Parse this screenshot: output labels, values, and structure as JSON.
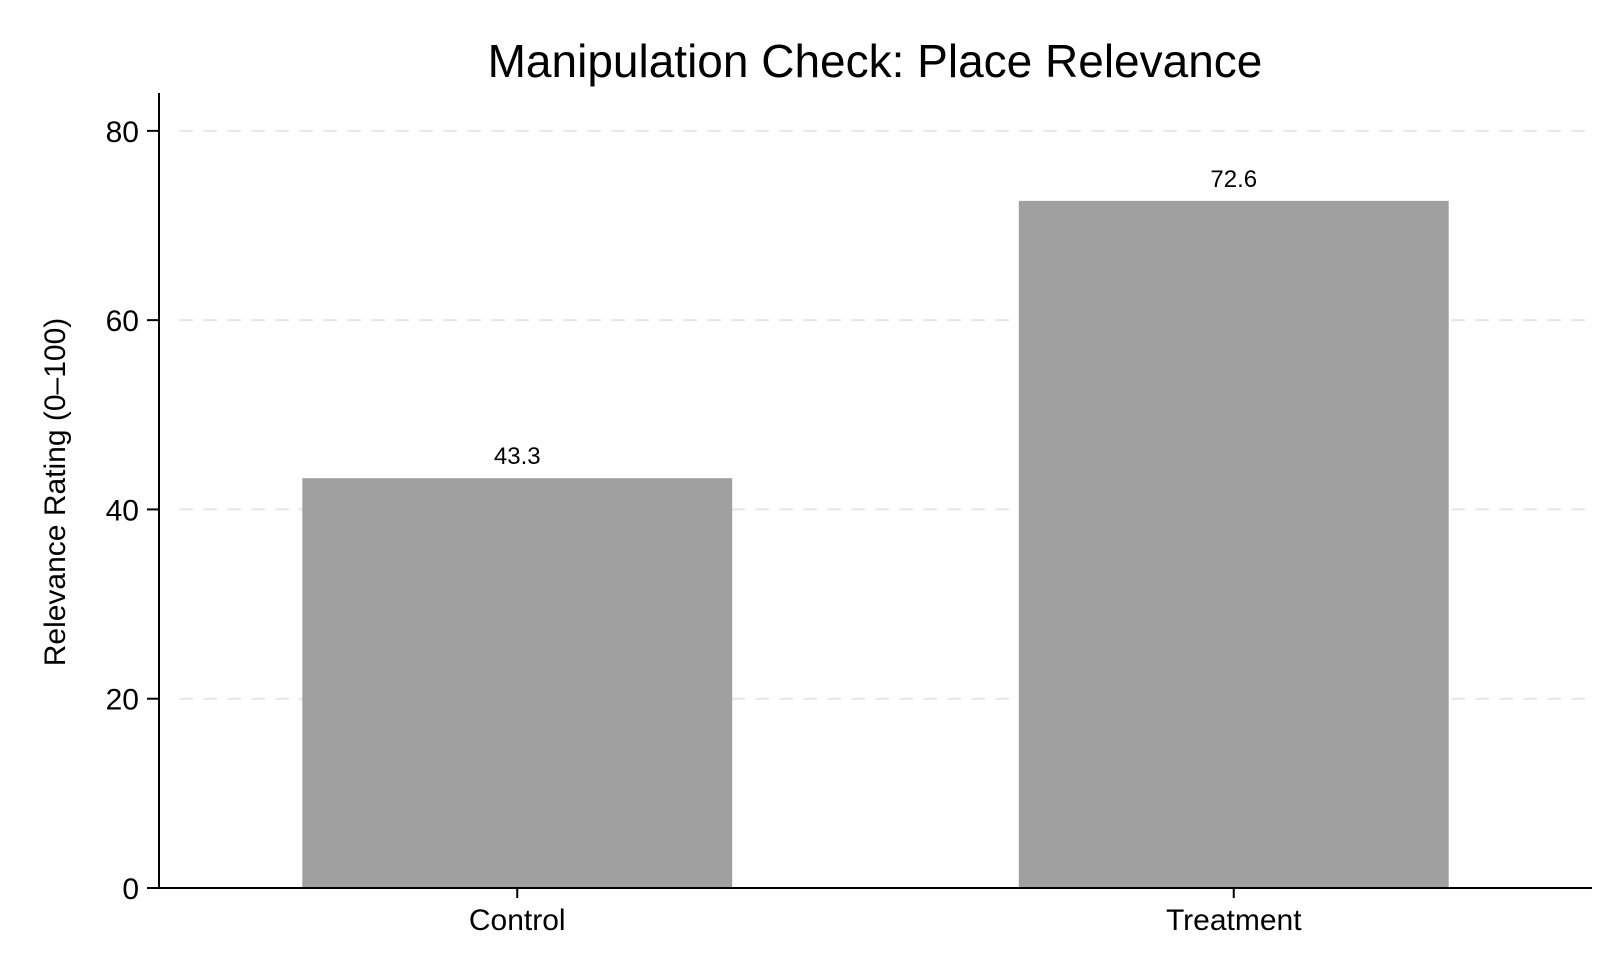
{
  "chart_data": {
    "type": "bar",
    "title": "Manipulation Check: Place Relevance",
    "xlabel": "",
    "ylabel": "Relevance Rating (0–100)",
    "categories": [
      "Control",
      "Treatment"
    ],
    "values": [
      43.3,
      72.6
    ],
    "value_labels": [
      "43.3",
      "72.6"
    ],
    "ylim": [
      0,
      84
    ],
    "yticks": [
      0,
      20,
      40,
      60,
      80
    ],
    "ytick_labels": [
      "0",
      "20",
      "40",
      "60",
      "80"
    ],
    "grid": "horizontal dashed",
    "legend": "none",
    "colors": {
      "bar": "#a0a0a0",
      "grid": "#e6e6e6",
      "axis": "#000000"
    }
  }
}
